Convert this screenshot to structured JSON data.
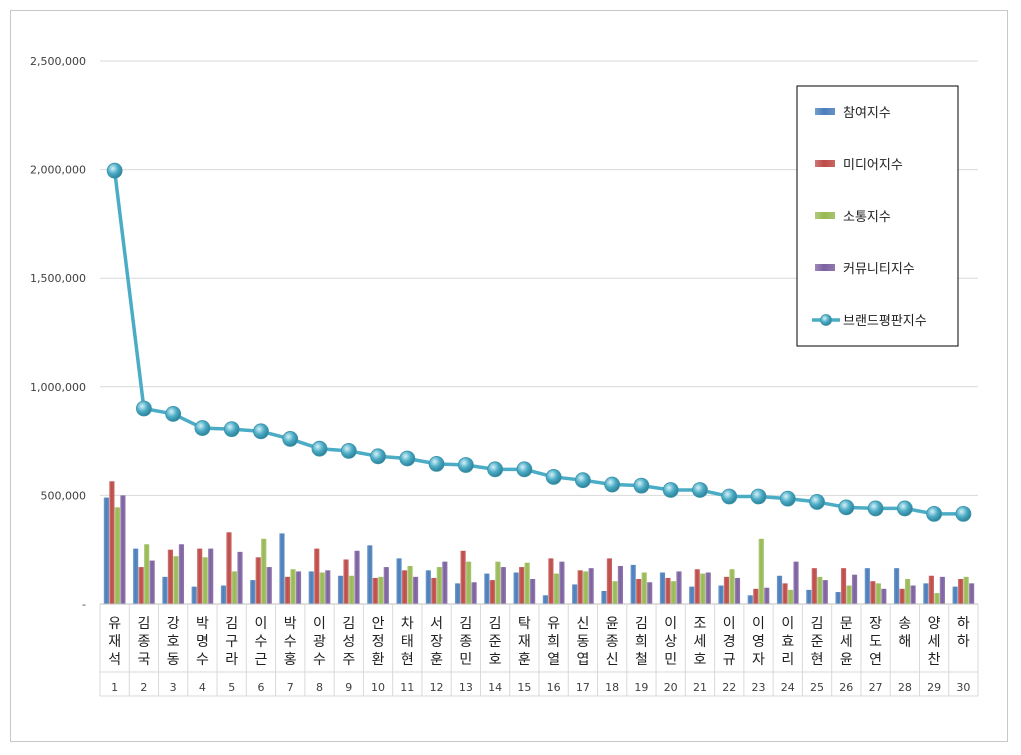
{
  "chart_data": {
    "type": "bar",
    "y_ticks": [
      "-",
      "500,000",
      "1,000,000",
      "1,500,000",
      "2,000,000",
      "2,500,000"
    ],
    "ylim": [
      0,
      2500000
    ],
    "grid": true,
    "legend_position": "right",
    "categories": [
      "유재석",
      "김종국",
      "강호동",
      "박명수",
      "김구라",
      "이수근",
      "박수홍",
      "이광수",
      "김성주",
      "안정환",
      "차태현",
      "서장훈",
      "김종민",
      "김준호",
      "탁재훈",
      "유희열",
      "신동엽",
      "윤종신",
      "김희철",
      "이상민",
      "조세호",
      "이경규",
      "이영자",
      "이효리",
      "김준현",
      "문세윤",
      "장도연",
      "송해",
      "양세찬",
      "하하"
    ],
    "ranks": [
      "1",
      "2",
      "3",
      "4",
      "5",
      "6",
      "7",
      "8",
      "9",
      "10",
      "11",
      "12",
      "13",
      "14",
      "15",
      "16",
      "17",
      "18",
      "19",
      "20",
      "21",
      "22",
      "23",
      "24",
      "25",
      "26",
      "27",
      "28",
      "29",
      "30"
    ],
    "series": [
      {
        "name": "참여지수",
        "kind": "bar",
        "color": "#4a7ebb",
        "values": [
          490000,
          255000,
          125000,
          80000,
          85000,
          110000,
          325000,
          150000,
          130000,
          270000,
          210000,
          155000,
          95000,
          140000,
          145000,
          40000,
          90000,
          60000,
          180000,
          145000,
          80000,
          85000,
          40000,
          130000,
          65000,
          55000,
          165000,
          165000,
          95000,
          80000
        ]
      },
      {
        "name": "미디어지수",
        "kind": "bar",
        "color": "#be4b48",
        "values": [
          565000,
          170000,
          250000,
          255000,
          330000,
          215000,
          125000,
          255000,
          205000,
          120000,
          155000,
          120000,
          245000,
          110000,
          170000,
          210000,
          155000,
          210000,
          115000,
          120000,
          160000,
          125000,
          70000,
          95000,
          165000,
          165000,
          105000,
          70000,
          130000,
          115000
        ]
      },
      {
        "name": "소통지수",
        "kind": "bar",
        "color": "#98b954",
        "values": [
          445000,
          275000,
          220000,
          215000,
          150000,
          300000,
          160000,
          145000,
          130000,
          125000,
          175000,
          170000,
          195000,
          195000,
          190000,
          140000,
          150000,
          105000,
          145000,
          105000,
          140000,
          160000,
          300000,
          65000,
          125000,
          85000,
          95000,
          115000,
          50000,
          125000
        ]
      },
      {
        "name": "커뮤니티지수",
        "kind": "bar",
        "color": "#7d60a0",
        "values": [
          500000,
          200000,
          275000,
          255000,
          240000,
          170000,
          150000,
          155000,
          245000,
          170000,
          125000,
          195000,
          100000,
          170000,
          115000,
          195000,
          165000,
          175000,
          100000,
          150000,
          145000,
          120000,
          75000,
          195000,
          110000,
          135000,
          70000,
          85000,
          125000,
          95000
        ]
      },
      {
        "name": "브랜드평판지수",
        "kind": "line",
        "color": "#4bacc6",
        "values": [
          1995000,
          900000,
          875000,
          810000,
          805000,
          795000,
          760000,
          715000,
          705000,
          680000,
          670000,
          645000,
          640000,
          620000,
          620000,
          585000,
          570000,
          550000,
          545000,
          525000,
          525000,
          495000,
          495000,
          485000,
          470000,
          445000,
          440000,
          440000,
          415000,
          415000
        ]
      }
    ]
  }
}
